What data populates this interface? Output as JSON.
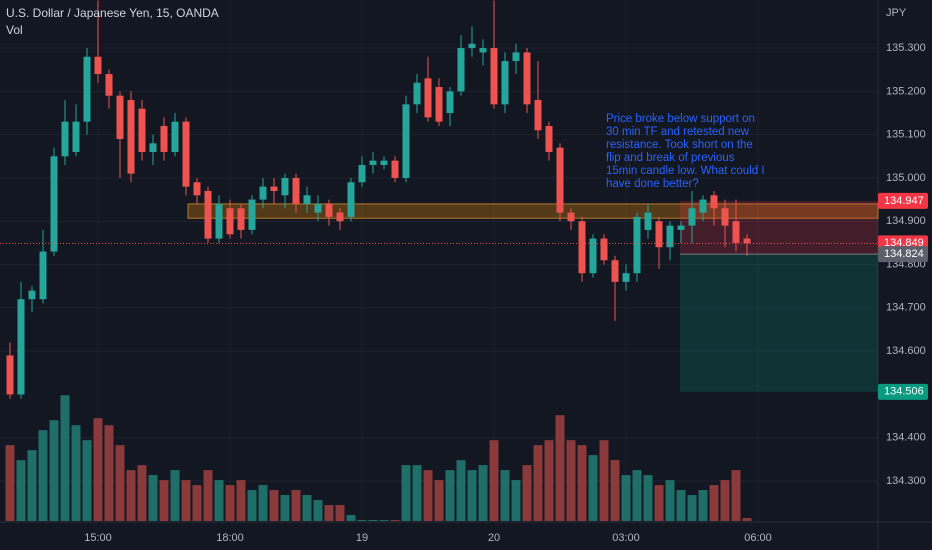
{
  "chart_data": {
    "type": "candlestick",
    "title": "U.S. Dollar / Japanese Yen, 15, OANDA",
    "volume_label": "Vol",
    "currency": "JPY",
    "annotation": [
      "Price broke below support on",
      "30 min TF and retested new",
      "resistance. Took short on the",
      "flip and break of previous",
      "15min candle low. What could I",
      "have done better?"
    ],
    "annotation_color": "#2962ff",
    "up_color": "#26a69a",
    "down_color": "#ef5350",
    "volume_up_color": "#1f6f68",
    "volume_down_color": "#8a3a3a",
    "categories": [
      null,
      null,
      null,
      null,
      null,
      null,
      null,
      null,
      "15:00",
      null,
      null,
      null,
      null,
      null,
      null,
      null,
      null,
      null,
      null,
      null,
      "18:00",
      null,
      null,
      null,
      null,
      null,
      null,
      null,
      null,
      null,
      null,
      null,
      "19",
      null,
      null,
      null,
      null,
      null,
      null,
      null,
      null,
      null,
      null,
      null,
      "20",
      null,
      null,
      null,
      null,
      null,
      null,
      null,
      null,
      null,
      null,
      null,
      "03:00",
      null,
      null,
      null,
      null,
      null,
      null,
      null,
      null,
      null,
      null,
      null,
      "06:00"
    ],
    "open": [
      134.59,
      134.5,
      134.72,
      134.72,
      134.83,
      135.05,
      135.06,
      135.13,
      135.28,
      135.24,
      135.19,
      135.18,
      135.16,
      135.06,
      135.12,
      135.06,
      135.13,
      134.99,
      134.97,
      134.86,
      134.93,
      134.93,
      134.88,
      134.95,
      134.98,
      134.96,
      135.0,
      134.94,
      134.92,
      134.94,
      134.92,
      134.91,
      134.99,
      135.03,
      135.03,
      135.04,
      135.0,
      135.17,
      135.23,
      135.21,
      135.15,
      135.2,
      135.3,
      135.29,
      135.3,
      135.17,
      135.27,
      135.29,
      135.18,
      135.12,
      135.07,
      134.92,
      134.9,
      134.78,
      134.86,
      134.81,
      134.76,
      134.78,
      134.88,
      134.9,
      134.84,
      134.88,
      134.89,
      134.92,
      134.96,
      134.93,
      134.9,
      134.86,
      null
    ],
    "high": [
      134.62,
      134.76,
      134.75,
      134.88,
      135.07,
      135.18,
      135.17,
      135.3,
      135.41,
      135.25,
      135.2,
      135.2,
      135.18,
      135.1,
      135.14,
      135.15,
      135.14,
      135.0,
      134.98,
      134.96,
      134.95,
      134.94,
      134.96,
      135.0,
      135.0,
      135.01,
      135.01,
      134.98,
      134.96,
      134.95,
      134.93,
      135.0,
      135.05,
      135.06,
      135.05,
      135.05,
      135.19,
      135.24,
      135.28,
      135.23,
      135.21,
      135.33,
      135.35,
      135.32,
      135.41,
      135.29,
      135.31,
      135.3,
      135.27,
      135.13,
      135.08,
      134.93,
      134.91,
      134.87,
      134.87,
      134.82,
      134.8,
      134.92,
      134.94,
      134.91,
      134.9,
      134.9,
      134.97,
      134.96,
      134.97,
      134.95,
      134.95,
      134.87,
      null
    ],
    "low": [
      134.49,
      134.49,
      134.69,
      134.71,
      134.82,
      135.03,
      135.05,
      135.1,
      135.22,
      135.16,
      135.0,
      134.99,
      135.04,
      135.03,
      135.04,
      135.05,
      134.96,
      134.94,
      134.85,
      134.85,
      134.86,
      134.86,
      134.87,
      134.93,
      134.94,
      134.93,
      134.92,
      134.92,
      134.9,
      134.89,
      134.88,
      134.9,
      134.98,
      135.01,
      135.02,
      134.99,
      134.99,
      135.15,
      135.13,
      135.12,
      135.12,
      135.19,
      135.28,
      135.26,
      135.16,
      135.15,
      135.24,
      135.15,
      135.09,
      135.04,
      134.9,
      134.88,
      134.76,
      134.77,
      134.8,
      134.67,
      134.74,
      134.76,
      134.86,
      134.79,
      134.81,
      134.85,
      134.85,
      134.9,
      134.89,
      134.84,
      134.83,
      134.82,
      null
    ],
    "close": [
      134.5,
      134.72,
      134.74,
      134.83,
      135.05,
      135.13,
      135.13,
      135.28,
      135.24,
      135.19,
      135.09,
      135.01,
      135.06,
      135.08,
      135.06,
      135.13,
      134.98,
      134.96,
      134.86,
      134.94,
      134.87,
      134.88,
      134.95,
      134.98,
      134.97,
      135.0,
      134.94,
      134.96,
      134.94,
      134.91,
      134.9,
      134.99,
      135.03,
      135.04,
      135.04,
      135.0,
      135.17,
      135.22,
      135.14,
      135.13,
      135.2,
      135.3,
      135.31,
      135.3,
      135.17,
      135.27,
      135.29,
      135.17,
      135.11,
      135.06,
      134.92,
      134.9,
      134.78,
      134.86,
      134.81,
      134.76,
      134.78,
      134.91,
      134.92,
      134.84,
      134.89,
      134.89,
      134.93,
      134.95,
      134.93,
      134.89,
      134.85,
      134.849,
      null
    ],
    "volume": [
      76,
      61,
      71,
      91,
      101,
      126,
      96,
      81,
      103,
      96,
      76,
      51,
      56,
      46,
      41,
      51,
      41,
      36,
      51,
      41,
      36,
      41,
      31,
      36,
      31,
      26,
      31,
      26,
      21,
      16,
      16,
      6,
      1,
      1,
      1,
      1,
      56,
      56,
      51,
      41,
      51,
      61,
      51,
      56,
      81,
      51,
      41,
      56,
      76,
      81,
      106,
      81,
      76,
      66,
      81,
      61,
      46,
      51,
      46,
      36,
      41,
      31,
      26,
      31,
      36,
      41,
      51,
      3,
      null
    ],
    "volume_lim": [
      0,
      521
    ],
    "ylim": [
      134.21,
      135.411
    ],
    "yticks": [
      {
        "value": 135.3,
        "label": "135.300"
      },
      {
        "value": 135.2,
        "label": "135.200"
      },
      {
        "value": 135.1,
        "label": "135.100"
      },
      {
        "value": 135.0,
        "label": "135.000"
      },
      {
        "value": 134.9,
        "label": "134.900"
      },
      {
        "value": 134.8,
        "label": "134.800"
      },
      {
        "value": 134.7,
        "label": "134.700"
      },
      {
        "value": 134.6,
        "label": "134.600"
      },
      {
        "value": 134.4,
        "label": "134.400"
      },
      {
        "value": 134.3,
        "label": "134.300"
      }
    ],
    "grid": true,
    "support_zone": [
      134.907,
      134.94
    ],
    "position": {
      "stop": {
        "value": 134.947,
        "label": "134.947"
      },
      "entry": {
        "value": 134.824,
        "label": "134.824"
      },
      "target": {
        "value": 134.506,
        "label": "134.506"
      }
    },
    "last_price": {
      "value": 134.849,
      "label": "134.849"
    }
  }
}
